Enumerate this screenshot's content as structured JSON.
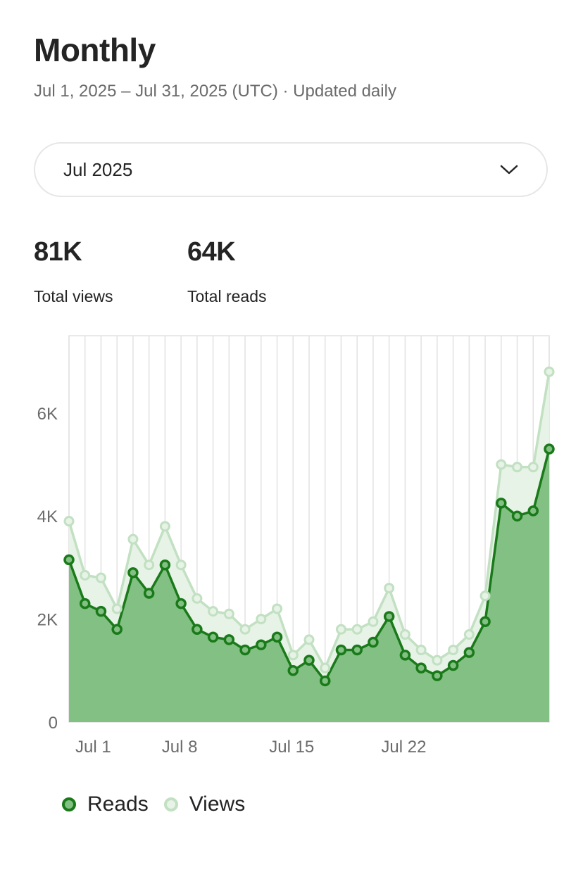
{
  "header": {
    "title": "Monthly",
    "subtitle": "Jul 1, 2025 – Jul 31, 2025 (UTC) · Updated daily"
  },
  "month_select": {
    "value": "Jul 2025",
    "icon": "chevron-down-icon"
  },
  "stats": {
    "views": {
      "value": "81K",
      "label": "Total views"
    },
    "reads": {
      "value": "64K",
      "label": "Total reads"
    }
  },
  "legend": {
    "reads": "Reads",
    "views": "Views"
  },
  "colors": {
    "reads_line": "#1a7a1a",
    "reads_fill": "#83c083",
    "views_line": "#c2e0c2",
    "views_fill": "#e7f3e7",
    "grid": "#e2e2e2",
    "axis_text": "#6b6b6b"
  },
  "chart_data": {
    "type": "area",
    "x": [
      "2025-07-01",
      "2025-07-02",
      "2025-07-03",
      "2025-07-04",
      "2025-07-05",
      "2025-07-06",
      "2025-07-07",
      "2025-07-08",
      "2025-07-09",
      "2025-07-10",
      "2025-07-11",
      "2025-07-12",
      "2025-07-13",
      "2025-07-14",
      "2025-07-15",
      "2025-07-16",
      "2025-07-17",
      "2025-07-18",
      "2025-07-19",
      "2025-07-20",
      "2025-07-21",
      "2025-07-22",
      "2025-07-23",
      "2025-07-24",
      "2025-07-25",
      "2025-07-26",
      "2025-07-27",
      "2025-07-28",
      "2025-07-29",
      "2025-07-30",
      "2025-07-31"
    ],
    "x_tick_labels": [
      "Jul 1",
      "Jul 8",
      "Jul 15",
      "Jul 22"
    ],
    "x_tick_dates": [
      "2025-07-01",
      "2025-07-08",
      "2025-07-15",
      "2025-07-22"
    ],
    "ylim": [
      0,
      7500
    ],
    "y_ticks": [
      0,
      2000,
      4000,
      6000
    ],
    "y_tick_labels": [
      "0",
      "2K",
      "4K",
      "6K"
    ],
    "grid": "vertical",
    "series": [
      {
        "name": "Views",
        "values": [
          3900,
          2850,
          2800,
          2200,
          3550,
          3050,
          3800,
          3050,
          2400,
          2150,
          2100,
          1800,
          2000,
          2200,
          1300,
          1600,
          1050,
          1800,
          1800,
          1950,
          2600,
          1700,
          1400,
          1200,
          1400,
          1700,
          2450,
          5000,
          4950,
          4950,
          6800
        ]
      },
      {
        "name": "Reads",
        "values": [
          3150,
          2300,
          2150,
          1800,
          2900,
          2500,
          3050,
          2300,
          1800,
          1650,
          1600,
          1400,
          1500,
          1650,
          1000,
          1200,
          800,
          1400,
          1400,
          1550,
          2050,
          1300,
          1050,
          900,
          1100,
          1350,
          1950,
          4250,
          4000,
          4100,
          5300
        ]
      }
    ],
    "legend_position": "bottom-left"
  }
}
